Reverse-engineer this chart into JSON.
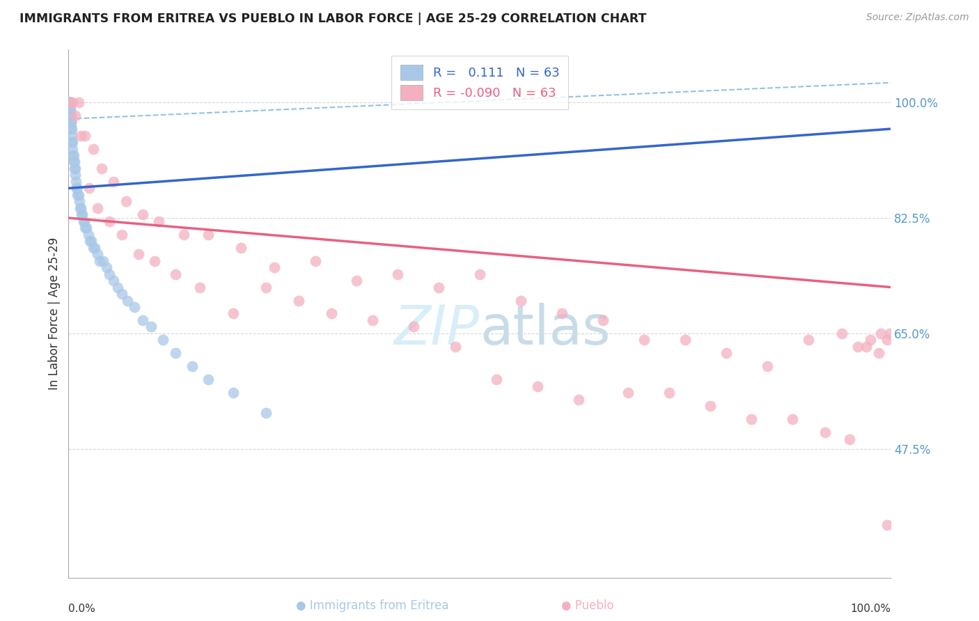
{
  "title": "IMMIGRANTS FROM ERITREA VS PUEBLO IN LABOR FORCE | AGE 25-29 CORRELATION CHART",
  "source_text": "Source: ZipAtlas.com",
  "ylabel": "In Labor Force | Age 25-29",
  "xlim": [
    0.0,
    1.0
  ],
  "ylim": [
    0.28,
    1.08
  ],
  "y_tick_labels": [
    "47.5%",
    "65.0%",
    "82.5%",
    "100.0%"
  ],
  "y_tick_positions": [
    0.475,
    0.65,
    0.825,
    1.0
  ],
  "eritrea_R": "0.111",
  "eritrea_N": "63",
  "pueblo_R": "-0.090",
  "pueblo_N": "63",
  "eritrea_color": "#a8c8e8",
  "pueblo_color": "#f4b0c0",
  "eritrea_line_color": "#3366cc",
  "pueblo_line_color": "#e86080",
  "dashed_line_color": "#88bbdd",
  "watermark_color": "#d8eef8",
  "grid_color": "#cccccc",
  "background_color": "#ffffff",
  "eritrea_x": [
    0.001,
    0.001,
    0.001,
    0.001,
    0.001,
    0.002,
    0.002,
    0.002,
    0.002,
    0.002,
    0.003,
    0.003,
    0.003,
    0.003,
    0.004,
    0.004,
    0.004,
    0.005,
    0.005,
    0.005,
    0.006,
    0.006,
    0.007,
    0.007,
    0.008,
    0.008,
    0.009,
    0.01,
    0.01,
    0.011,
    0.012,
    0.013,
    0.014,
    0.015,
    0.016,
    0.017,
    0.018,
    0.019,
    0.02,
    0.022,
    0.024,
    0.026,
    0.028,
    0.03,
    0.032,
    0.035,
    0.038,
    0.042,
    0.046,
    0.05,
    0.055,
    0.06,
    0.065,
    0.072,
    0.08,
    0.09,
    0.1,
    0.115,
    0.13,
    0.15,
    0.17,
    0.2,
    0.24
  ],
  "eritrea_y": [
    1.0,
    1.0,
    1.0,
    1.0,
    0.99,
    1.0,
    1.0,
    1.0,
    0.99,
    0.98,
    0.98,
    0.97,
    0.97,
    0.96,
    0.96,
    0.95,
    0.94,
    0.94,
    0.93,
    0.92,
    0.92,
    0.91,
    0.91,
    0.9,
    0.9,
    0.89,
    0.88,
    0.87,
    0.87,
    0.86,
    0.86,
    0.85,
    0.84,
    0.84,
    0.83,
    0.83,
    0.82,
    0.82,
    0.81,
    0.81,
    0.8,
    0.79,
    0.79,
    0.78,
    0.78,
    0.77,
    0.76,
    0.76,
    0.75,
    0.74,
    0.73,
    0.72,
    0.71,
    0.7,
    0.69,
    0.67,
    0.66,
    0.64,
    0.62,
    0.6,
    0.58,
    0.56,
    0.53
  ],
  "pueblo_x": [
    0.001,
    0.005,
    0.012,
    0.02,
    0.03,
    0.04,
    0.055,
    0.07,
    0.09,
    0.11,
    0.14,
    0.17,
    0.21,
    0.25,
    0.3,
    0.35,
    0.4,
    0.45,
    0.5,
    0.55,
    0.6,
    0.65,
    0.7,
    0.75,
    0.8,
    0.85,
    0.9,
    0.94,
    0.96,
    0.975,
    0.988,
    0.995,
    0.999,
    0.008,
    0.015,
    0.025,
    0.035,
    0.05,
    0.065,
    0.085,
    0.105,
    0.13,
    0.16,
    0.2,
    0.24,
    0.28,
    0.32,
    0.37,
    0.42,
    0.47,
    0.52,
    0.57,
    0.62,
    0.68,
    0.73,
    0.78,
    0.83,
    0.88,
    0.92,
    0.95,
    0.97,
    0.985,
    0.995
  ],
  "pueblo_y": [
    1.0,
    1.0,
    1.0,
    0.95,
    0.93,
    0.9,
    0.88,
    0.85,
    0.83,
    0.82,
    0.8,
    0.8,
    0.78,
    0.75,
    0.76,
    0.73,
    0.74,
    0.72,
    0.74,
    0.7,
    0.68,
    0.67,
    0.64,
    0.64,
    0.62,
    0.6,
    0.64,
    0.65,
    0.63,
    0.64,
    0.65,
    0.64,
    0.65,
    0.98,
    0.95,
    0.87,
    0.84,
    0.82,
    0.8,
    0.77,
    0.76,
    0.74,
    0.72,
    0.68,
    0.72,
    0.7,
    0.68,
    0.67,
    0.66,
    0.63,
    0.58,
    0.57,
    0.55,
    0.56,
    0.56,
    0.54,
    0.52,
    0.52,
    0.5,
    0.49,
    0.63,
    0.62,
    0.36
  ]
}
